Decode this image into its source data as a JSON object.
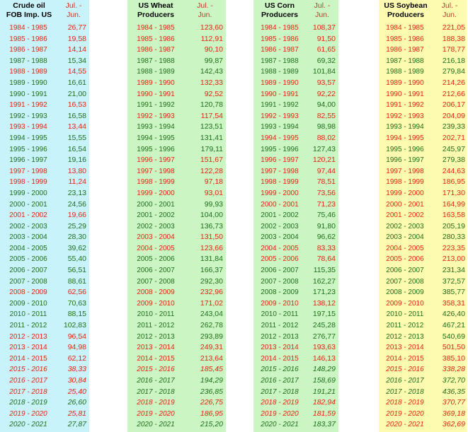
{
  "years": [
    "1984 - 1985",
    "1985 - 1986",
    "1986 - 1987",
    "1987 - 1988",
    "1988 - 1989",
    "1989 - 1990",
    "1990 - 1991",
    "1991 - 1992",
    "1992 - 1993",
    "1993 - 1994",
    "1994 - 1995",
    "1995 - 1996",
    "1996 - 1997",
    "1997 - 1998",
    "1998 - 1999",
    "1999 - 2000",
    "2000 - 2001",
    "2001 - 2002",
    "2002 - 2003",
    "2003 - 2004",
    "2004 - 2005",
    "2005 - 2006",
    "2006 - 2007",
    "2007 - 2008",
    "2008 - 2009",
    "2009 - 2010",
    "2010 - 2011",
    "2011 - 2012",
    "2012 - 2013",
    "2013 - 2014",
    "2014 - 2015",
    "2015 - 2016",
    "2016 - 2017",
    "2017 - 2018",
    "2018 - 2019",
    "2019 - 2020",
    "2020 - 2021"
  ],
  "colors": {
    "red": "#e8230f",
    "green": "#1f6f1a",
    "cyan_bg": "#c9f3fb",
    "green_bg": "#ccf5c4",
    "yellow_bg": "#fdfbb0"
  },
  "tables": [
    {
      "id": "oil",
      "title_l1": "Crude oil",
      "title_l2": "FOB Imp. US",
      "period_l1": "Jul. -",
      "period_l2": "Jun.",
      "values": [
        "26,77",
        "19,58",
        "14,14",
        "15,34",
        "14,55",
        "16,61",
        "21,00",
        "16,53",
        "16,58",
        "13,44",
        "15,55",
        "16,54",
        "19,16",
        "13,80",
        "11,24",
        "23,13",
        "24,56",
        "19,66",
        "25,29",
        "28,30",
        "39,62",
        "55,40",
        "56,51",
        "88,61",
        "62,56",
        "70,63",
        "88,15",
        "102,83",
        "96,54",
        "94,98",
        "62,12",
        "38,33",
        "30,84",
        "25,40",
        "26,60",
        "25,81",
        "27,87"
      ],
      "color": [
        "r",
        "r",
        "r",
        "g",
        "r",
        "g",
        "g",
        "r",
        "g",
        "r",
        "g",
        "g",
        "g",
        "r",
        "r",
        "g",
        "g",
        "r",
        "g",
        "g",
        "g",
        "g",
        "g",
        "g",
        "r",
        "g",
        "g",
        "g",
        "r",
        "r",
        "r",
        "r",
        "r",
        "r",
        "g",
        "r",
        "g"
      ],
      "italic": [
        0,
        0,
        0,
        0,
        0,
        0,
        0,
        0,
        0,
        0,
        0,
        0,
        0,
        0,
        0,
        0,
        0,
        0,
        0,
        0,
        0,
        0,
        0,
        0,
        0,
        0,
        0,
        0,
        0,
        0,
        0,
        1,
        1,
        1,
        1,
        1,
        1
      ]
    },
    {
      "id": "wheat",
      "title_l1": "US Wheat",
      "title_l2": "Producers",
      "period_l1": "Jul. -",
      "period_l2": "Jun.",
      "values": [
        "123,60",
        "112,91",
        "90,10",
        "99,87",
        "142,43",
        "132,33",
        "92,52",
        "120,78",
        "117,54",
        "123,51",
        "131,41",
        "179,11",
        "151,67",
        "122,28",
        "97,18",
        "93,01",
        "99,93",
        "104,00",
        "136,73",
        "131,50",
        "123,66",
        "131,84",
        "166,37",
        "292,30",
        "232,96",
        "171,02",
        "243,04",
        "262,78",
        "293,89",
        "249,31",
        "213,64",
        "185,45",
        "194,29",
        "236,85",
        "226,75",
        "186,95",
        "215,20"
      ],
      "color": [
        "r",
        "r",
        "r",
        "g",
        "g",
        "r",
        "r",
        "g",
        "r",
        "g",
        "g",
        "g",
        "r",
        "r",
        "r",
        "r",
        "g",
        "g",
        "g",
        "r",
        "r",
        "g",
        "g",
        "g",
        "r",
        "r",
        "g",
        "g",
        "g",
        "r",
        "r",
        "r",
        "g",
        "g",
        "r",
        "r",
        "g"
      ],
      "italic": [
        0,
        0,
        0,
        0,
        0,
        0,
        0,
        0,
        0,
        0,
        0,
        0,
        0,
        0,
        0,
        0,
        0,
        0,
        0,
        0,
        0,
        0,
        0,
        0,
        0,
        0,
        0,
        0,
        0,
        0,
        0,
        1,
        1,
        1,
        1,
        1,
        1
      ]
    },
    {
      "id": "corn",
      "title_l1": "US Corn",
      "title_l2": "Producers",
      "period_l1": "Jul. -",
      "period_l2": "Jun.",
      "values": [
        "108,37",
        "91,50",
        "61,65",
        "69,32",
        "101,84",
        "93,57",
        "92,22",
        "94,00",
        "82,55",
        "98,98",
        "88,02",
        "127,43",
        "120,21",
        "97,44",
        "78,51",
        "73,56",
        "71,23",
        "75,46",
        "91,80",
        "96,62",
        "83,33",
        "78,64",
        "115,35",
        "162,27",
        "171,23",
        "138,12",
        "197,15",
        "245,28",
        "276,77",
        "193,63",
        "146,13",
        "148,29",
        "158,69",
        "191,21",
        "182,94",
        "181,59",
        "183,37"
      ],
      "color": [
        "r",
        "r",
        "r",
        "g",
        "g",
        "r",
        "r",
        "g",
        "r",
        "g",
        "r",
        "g",
        "r",
        "r",
        "r",
        "r",
        "r",
        "g",
        "g",
        "g",
        "r",
        "r",
        "g",
        "g",
        "g",
        "r",
        "g",
        "g",
        "g",
        "r",
        "r",
        "g",
        "g",
        "g",
        "r",
        "r",
        "g"
      ],
      "italic": [
        0,
        0,
        0,
        0,
        0,
        0,
        0,
        0,
        0,
        0,
        0,
        0,
        0,
        0,
        0,
        0,
        0,
        0,
        0,
        0,
        0,
        0,
        0,
        0,
        0,
        0,
        0,
        0,
        0,
        0,
        0,
        1,
        1,
        1,
        1,
        1,
        1
      ]
    },
    {
      "id": "soy",
      "title_l1": "US Soybean",
      "title_l2": "Producers",
      "period_l1": "Jul. -",
      "period_l2": "Jun.",
      "values": [
        "221,05",
        "188,38",
        "178,77",
        "216,18",
        "279,84",
        "214,26",
        "212,66",
        "206,17",
        "204,09",
        "239,33",
        "202,71",
        "245,97",
        "279,38",
        "244,63",
        "186,95",
        "171,30",
        "164,99",
        "163,58",
        "205,19",
        "280,33",
        "223,35",
        "213,00",
        "231,34",
        "372,57",
        "385,77",
        "358,31",
        "426,40",
        "467,21",
        "540,69",
        "501,50",
        "385,10",
        "338,28",
        "372,70",
        "436,35",
        "370,77",
        "369,18",
        "362,69"
      ],
      "color": [
        "r",
        "r",
        "r",
        "g",
        "g",
        "r",
        "r",
        "r",
        "r",
        "g",
        "r",
        "g",
        "g",
        "r",
        "r",
        "r",
        "r",
        "r",
        "g",
        "g",
        "r",
        "r",
        "g",
        "g",
        "g",
        "r",
        "g",
        "g",
        "g",
        "r",
        "r",
        "r",
        "g",
        "g",
        "r",
        "r",
        "r"
      ],
      "italic": [
        0,
        0,
        0,
        0,
        0,
        0,
        0,
        0,
        0,
        0,
        0,
        0,
        0,
        0,
        0,
        0,
        0,
        0,
        0,
        0,
        0,
        0,
        0,
        0,
        0,
        0,
        0,
        0,
        0,
        0,
        0,
        1,
        1,
        1,
        1,
        1,
        1
      ]
    }
  ]
}
